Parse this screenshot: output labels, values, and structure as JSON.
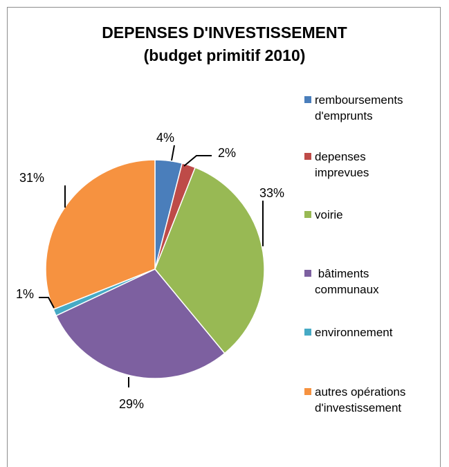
{
  "chart_data": {
    "type": "pie",
    "title_line1": "DEPENSES D'INVESTISSEMENT",
    "title_line2": "(budget primitif 2010)",
    "legend_position": "right",
    "slices": [
      {
        "name_line1": "remboursements",
        "name_line2": "d'emprunts",
        "value": 4,
        "label": "4%",
        "color": "#4A7EBB"
      },
      {
        "name_line1": "depenses",
        "name_line2": "imprevues",
        "value": 2,
        "label": "2%",
        "color": "#BE4B48"
      },
      {
        "name_line1": "voirie",
        "name_line2": "",
        "value": 33,
        "label": "33%",
        "color": "#98B954"
      },
      {
        "name_line1": " bâtiments",
        "name_line2": "communaux",
        "value": 29,
        "label": "29%",
        "color": "#7D60A0"
      },
      {
        "name_line1": "environnement",
        "name_line2": "",
        "value": 1,
        "label": "1%",
        "color": "#46AAC5"
      },
      {
        "name_line1": "autres opérations",
        "name_line2": "d'investissement",
        "value": 31,
        "label": "31%",
        "color": "#F69240"
      }
    ]
  }
}
